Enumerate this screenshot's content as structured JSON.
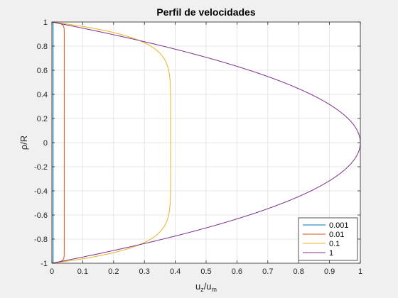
{
  "chart_data": {
    "type": "line",
    "title": "Perfil de velocidades",
    "xlabel": {
      "base": "u",
      "sub1": "z",
      "mid": "/u",
      "sub2": "m"
    },
    "ylabel": "ρ/R",
    "xlim": [
      0,
      1
    ],
    "ylim": [
      -1,
      1
    ],
    "xticks": [
      "0",
      "0.1",
      "0.2",
      "0.3",
      "0.4",
      "0.5",
      "0.6",
      "0.7",
      "0.8",
      "0.9",
      "1"
    ],
    "yticks": [
      "-1",
      "-0.8",
      "-0.6",
      "-0.4",
      "-0.2",
      "0",
      "0.2",
      "0.4",
      "0.6",
      "0.8",
      "1"
    ],
    "grid": true,
    "legend_position": "bottom-right",
    "series": [
      {
        "name": "0.001",
        "color": "#0072BD",
        "peak": 0.004,
        "exponent": 800
      },
      {
        "name": "0.01",
        "color": "#D95319",
        "peak": 0.04,
        "exponent": 80
      },
      {
        "name": "0.1",
        "color": "#EDB120",
        "peak": 0.385,
        "exponent": 8
      },
      {
        "name": "1",
        "color": "#7E2F8E",
        "peak": 1.0,
        "exponent": 2
      }
    ]
  }
}
